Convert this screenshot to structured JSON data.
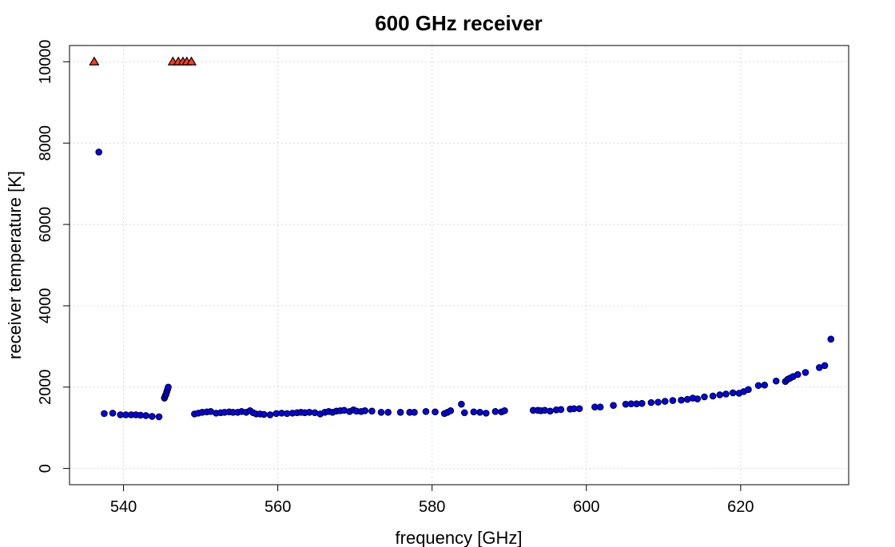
{
  "chart_data": {
    "type": "scatter",
    "title": "600 GHz receiver",
    "xlabel": "frequency [GHz]",
    "ylabel": "receiver temperature [K]",
    "xlim": [
      533,
      634
    ],
    "ylim": [
      -400,
      10400
    ],
    "xticks": [
      540,
      560,
      580,
      600,
      620
    ],
    "yticks": [
      0,
      2000,
      4000,
      6000,
      8000,
      10000
    ],
    "grid": true,
    "colors": {
      "normal": "#0000ff",
      "clipped": "#ff3b1f",
      "edge": "#000000"
    },
    "series": [
      {
        "marker": "triangle",
        "color": "#ff3b1f",
        "x": [
          536.2,
          546.4,
          547.1,
          547.7,
          548.2,
          548.8
        ],
        "y": [
          10000,
          10000,
          10000,
          10000,
          10000,
          10000
        ]
      },
      {
        "marker": "circle",
        "color": "#0000ff",
        "x": [
          536.8,
          537.5,
          538.6,
          539.6,
          540.3,
          541.0,
          541.6,
          542.2,
          542.9,
          543.7,
          544.6,
          545.3,
          545.4,
          545.5,
          545.6,
          545.7,
          545.8,
          549.2,
          549.7,
          550.2,
          550.8,
          551.3,
          552.0,
          552.6,
          553.1,
          553.7,
          554.2,
          554.8,
          555.3,
          555.9,
          556.4,
          556.8,
          557.2,
          557.7,
          558.2,
          559.0,
          559.8,
          560.5,
          561.2,
          561.9,
          562.5,
          563.0,
          563.5,
          564.1,
          564.8,
          565.5,
          566.1,
          566.6,
          567.1,
          567.6,
          568.1,
          568.6,
          569.3,
          569.8,
          570.2,
          570.8,
          571.3,
          572.2,
          573.4,
          574.3,
          575.9,
          577.1,
          577.7,
          579.2,
          580.4,
          581.6,
          582.0,
          582.4,
          583.8,
          584.2,
          585.4,
          586.2,
          587.0,
          588.2,
          589.0,
          589.4,
          593.1,
          593.7,
          594.1,
          594.6,
          595.3,
          596.1,
          596.7,
          597.9,
          598.4,
          599.1,
          601.1,
          601.8,
          603.5,
          605.1,
          605.8,
          606.5,
          607.2,
          608.4,
          609.3,
          610.2,
          611.2,
          612.3,
          613.1,
          613.8,
          614.4,
          615.3,
          616.4,
          617.3,
          618.1,
          619.0,
          619.8,
          620.4,
          621.0,
          622.3,
          623.1,
          624.6,
          625.8,
          626.1,
          626.4,
          626.8,
          627.4,
          628.4,
          630.2,
          630.9,
          631.7
        ],
        "y": [
          7780,
          1350,
          1360,
          1320,
          1320,
          1320,
          1320,
          1310,
          1300,
          1280,
          1270,
          1730,
          1780,
          1820,
          1880,
          1940,
          2000,
          1340,
          1360,
          1380,
          1390,
          1400,
          1360,
          1370,
          1380,
          1390,
          1380,
          1380,
          1400,
          1380,
          1420,
          1370,
          1340,
          1340,
          1330,
          1320,
          1350,
          1360,
          1350,
          1360,
          1370,
          1380,
          1370,
          1380,
          1370,
          1340,
          1380,
          1400,
          1380,
          1410,
          1420,
          1430,
          1400,
          1440,
          1410,
          1400,
          1420,
          1410,
          1380,
          1380,
          1380,
          1380,
          1380,
          1400,
          1390,
          1350,
          1380,
          1420,
          1580,
          1370,
          1390,
          1380,
          1360,
          1400,
          1390,
          1420,
          1430,
          1430,
          1420,
          1430,
          1410,
          1440,
          1450,
          1460,
          1470,
          1470,
          1510,
          1510,
          1550,
          1580,
          1590,
          1590,
          1600,
          1620,
          1630,
          1650,
          1670,
          1680,
          1700,
          1730,
          1710,
          1760,
          1780,
          1810,
          1830,
          1860,
          1850,
          1890,
          1940,
          2040,
          2050,
          2150,
          2140,
          2190,
          2220,
          2260,
          2310,
          2360,
          2480,
          2530,
          3180
        ]
      }
    ]
  }
}
